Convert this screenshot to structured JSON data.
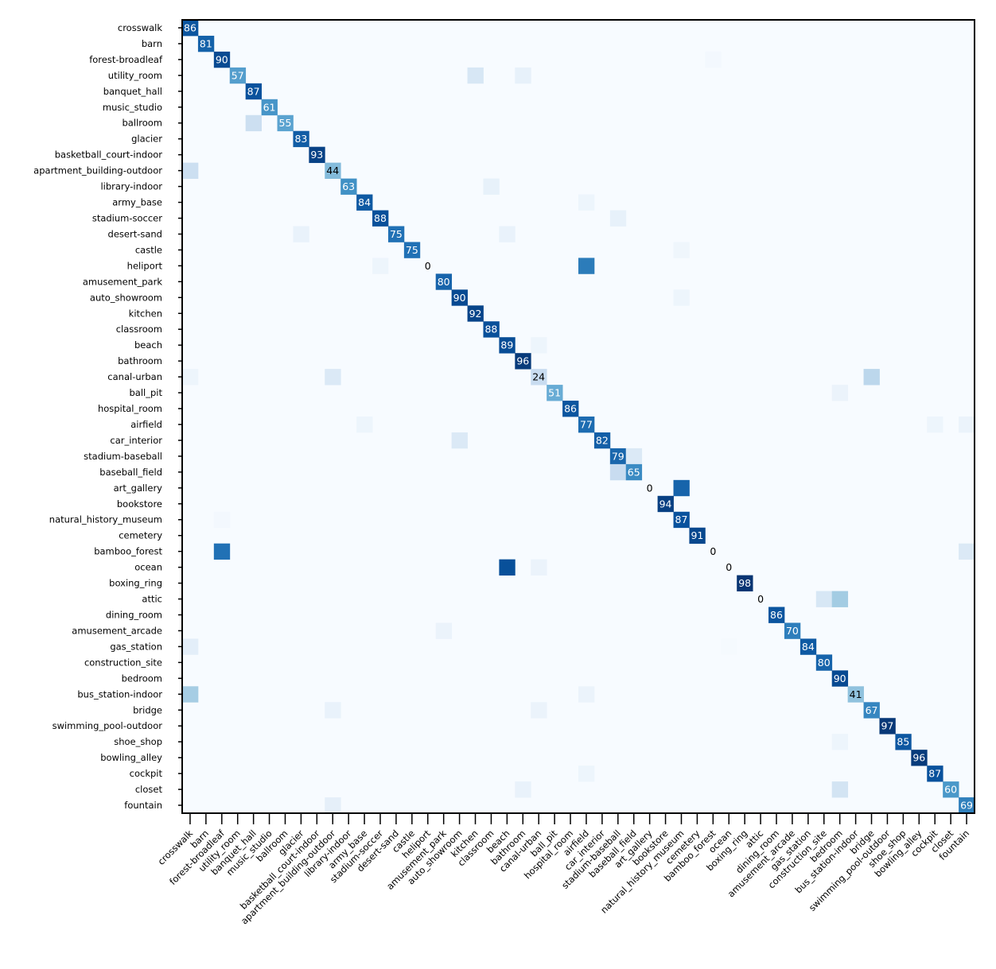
{
  "chart_data": {
    "type": "heatmap",
    "title": "",
    "xlabel": "",
    "ylabel": "",
    "colormap": "Blues",
    "vmin": 0,
    "vmax": 100,
    "labels": [
      "crosswalk",
      "barn",
      "forest-broadleaf",
      "utility_room",
      "banquet_hall",
      "music_studio",
      "ballroom",
      "glacier",
      "basketball_court-indoor",
      "apartment_building-outdoor",
      "library-indoor",
      "army_base",
      "stadium-soccer",
      "desert-sand",
      "castle",
      "heliport",
      "amusement_park",
      "auto_showroom",
      "kitchen",
      "classroom",
      "beach",
      "bathroom",
      "canal-urban",
      "ball_pit",
      "hospital_room",
      "airfield",
      "car_interior",
      "stadium-baseball",
      "baseball_field",
      "art_gallery",
      "bookstore",
      "natural_history_museum",
      "cemetery",
      "bamboo_forest",
      "ocean",
      "boxing_ring",
      "attic",
      "dining_room",
      "amusement_arcade",
      "gas_station",
      "construction_site",
      "bedroom",
      "bus_station-indoor",
      "bridge",
      "swimming_pool-outdoor",
      "shoe_shop",
      "bowling_alley",
      "cockpit",
      "closet",
      "fountain"
    ],
    "diagonal": [
      86,
      81,
      90,
      57,
      87,
      61,
      55,
      83,
      93,
      44,
      63,
      84,
      88,
      75,
      75,
      0,
      80,
      90,
      92,
      88,
      89,
      96,
      24,
      51,
      86,
      77,
      82,
      79,
      65,
      0,
      94,
      87,
      91,
      0,
      0,
      98,
      0,
      86,
      70,
      84,
      80,
      90,
      41,
      67,
      97,
      85,
      96,
      87,
      60,
      69
    ],
    "off_diagonal": [
      {
        "row": 9,
        "col": 0,
        "value": 22
      },
      {
        "row": 42,
        "col": 0,
        "value": 35
      },
      {
        "row": 39,
        "col": 0,
        "value": 10
      },
      {
        "row": 22,
        "col": 0,
        "value": 5
      },
      {
        "row": 6,
        "col": 4,
        "value": 22
      },
      {
        "row": 3,
        "col": 18,
        "value": 16
      },
      {
        "row": 3,
        "col": 21,
        "value": 8
      },
      {
        "row": 10,
        "col": 19,
        "value": 8
      },
      {
        "row": 13,
        "col": 7,
        "value": 7
      },
      {
        "row": 13,
        "col": 20,
        "value": 7
      },
      {
        "row": 14,
        "col": 31,
        "value": 4
      },
      {
        "row": 15,
        "col": 25,
        "value": 71
      },
      {
        "row": 15,
        "col": 12,
        "value": 5
      },
      {
        "row": 17,
        "col": 31,
        "value": 5
      },
      {
        "row": 22,
        "col": 9,
        "value": 14
      },
      {
        "row": 22,
        "col": 43,
        "value": 28
      },
      {
        "row": 26,
        "col": 17,
        "value": 14
      },
      {
        "row": 12,
        "col": 27,
        "value": 8
      },
      {
        "row": 27,
        "col": 28,
        "value": 14
      },
      {
        "row": 28,
        "col": 27,
        "value": 24
      },
      {
        "row": 29,
        "col": 31,
        "value": 80
      },
      {
        "row": 33,
        "col": 2,
        "value": 75
      },
      {
        "row": 33,
        "col": 49,
        "value": 14
      },
      {
        "row": 34,
        "col": 20,
        "value": 88
      },
      {
        "row": 34,
        "col": 22,
        "value": 6
      },
      {
        "row": 36,
        "col": 40,
        "value": 16
      },
      {
        "row": 36,
        "col": 41,
        "value": 36
      },
      {
        "row": 41,
        "col": 41,
        "value": 90
      },
      {
        "row": 43,
        "col": 9,
        "value": 7
      },
      {
        "row": 43,
        "col": 22,
        "value": 6
      },
      {
        "row": 48,
        "col": 41,
        "value": 18
      },
      {
        "row": 48,
        "col": 21,
        "value": 7
      },
      {
        "row": 49,
        "col": 9,
        "value": 9
      },
      {
        "row": 25,
        "col": 11,
        "value": 5
      },
      {
        "row": 23,
        "col": 41,
        "value": 6
      },
      {
        "row": 38,
        "col": 16,
        "value": 6
      },
      {
        "row": 42,
        "col": 25,
        "value": 6
      },
      {
        "row": 11,
        "col": 25,
        "value": 5
      },
      {
        "row": 47,
        "col": 25,
        "value": 5
      },
      {
        "row": 2,
        "col": 33,
        "value": 2
      },
      {
        "row": 25,
        "col": 47,
        "value": 5
      },
      {
        "row": 25,
        "col": 49,
        "value": 6
      },
      {
        "row": 20,
        "col": 22,
        "value": 5
      },
      {
        "row": 45,
        "col": 41,
        "value": 5
      },
      {
        "row": 31,
        "col": 2,
        "value": 2
      },
      {
        "row": 39,
        "col": 34,
        "value": 1
      }
    ],
    "grid": false
  }
}
